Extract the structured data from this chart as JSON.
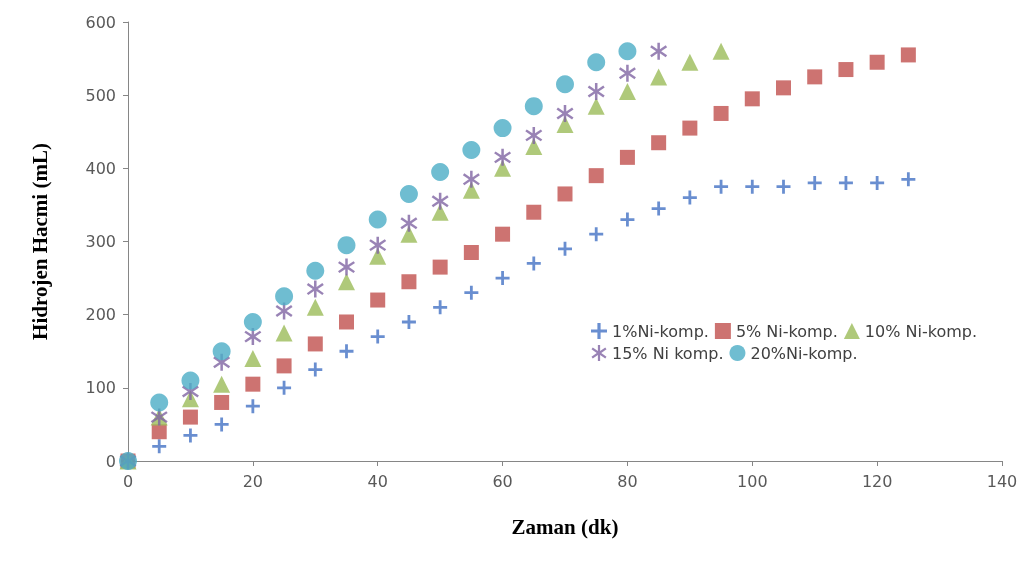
{
  "chart_data": {
    "type": "scatter",
    "xlabel": "Zaman (dk)",
    "ylabel": "Hidrojen Hacmi (mL)",
    "xlim": [
      0,
      140
    ],
    "xticks": [
      0,
      20,
      40,
      60,
      80,
      100,
      120,
      140
    ],
    "ylim": [
      0,
      600
    ],
    "yticks": [
      0,
      100,
      200,
      300,
      400,
      500,
      600
    ],
    "grid": false,
    "legend": "bottom right",
    "x": [
      0,
      5,
      10,
      15,
      20,
      25,
      30,
      35,
      40,
      45,
      50,
      55,
      60,
      65,
      70,
      75,
      80,
      85,
      90,
      95,
      100,
      105,
      110,
      115,
      120,
      125
    ],
    "series": [
      {
        "name": "1%Ni-komp.",
        "color": "#4472c4",
        "marker": "cross",
        "values": [
          0,
          20,
          35,
          50,
          75,
          100,
          125,
          150,
          170,
          190,
          210,
          230,
          250,
          270,
          290,
          310,
          330,
          345,
          360,
          375,
          375,
          375,
          380,
          380,
          380,
          385
        ]
      },
      {
        "name": "5% Ni-komp.",
        "color": "#c0504d",
        "marker": "square",
        "values": [
          0,
          40,
          60,
          80,
          105,
          130,
          160,
          190,
          220,
          245,
          265,
          285,
          310,
          340,
          365,
          390,
          415,
          435,
          455,
          475,
          495,
          510,
          525,
          535,
          545,
          555
        ]
      },
      {
        "name": "10% Ni-komp.",
        "color": "#9bbb59",
        "marker": "triangle",
        "values": [
          0,
          60,
          85,
          105,
          140,
          175,
          210,
          245,
          280,
          310,
          340,
          370,
          400,
          430,
          460,
          485,
          505,
          525,
          545,
          560,
          null,
          null,
          null,
          null,
          null,
          null
        ]
      },
      {
        "name": "15% Ni komp.",
        "color": "#8064a2",
        "marker": "star",
        "values": [
          0,
          60,
          95,
          135,
          170,
          205,
          235,
          265,
          295,
          325,
          355,
          385,
          415,
          445,
          475,
          505,
          530,
          560,
          null,
          null,
          null,
          null,
          null,
          null,
          null,
          null
        ]
      },
      {
        "name": "20%Ni-komp.",
        "color": "#4bacc6",
        "marker": "circle",
        "values": [
          0,
          80,
          110,
          150,
          190,
          225,
          260,
          295,
          330,
          365,
          395,
          425,
          455,
          485,
          515,
          545,
          560,
          null,
          null,
          null,
          null,
          null,
          null,
          null,
          null,
          null
        ]
      }
    ]
  }
}
